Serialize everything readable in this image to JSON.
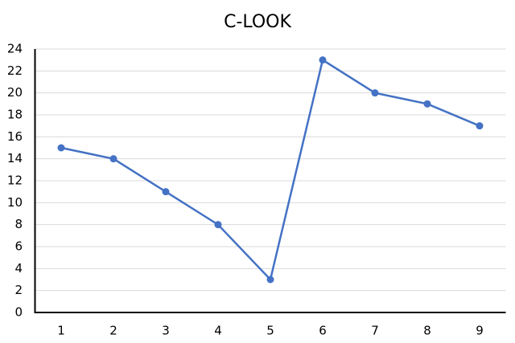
{
  "chart_data": {
    "type": "line",
    "title": "C-LOOK",
    "categories": [
      "1",
      "2",
      "3",
      "4",
      "5",
      "6",
      "7",
      "8",
      "9"
    ],
    "series": [
      {
        "color": "#4472c4",
        "values": [
          15,
          14,
          11,
          8,
          3,
          23,
          20,
          19,
          17
        ]
      }
    ],
    "ylim": [
      0,
      24
    ],
    "yticks": [
      0,
      2,
      4,
      6,
      8,
      10,
      12,
      14,
      16,
      18,
      20,
      22,
      24
    ],
    "grid": true
  }
}
